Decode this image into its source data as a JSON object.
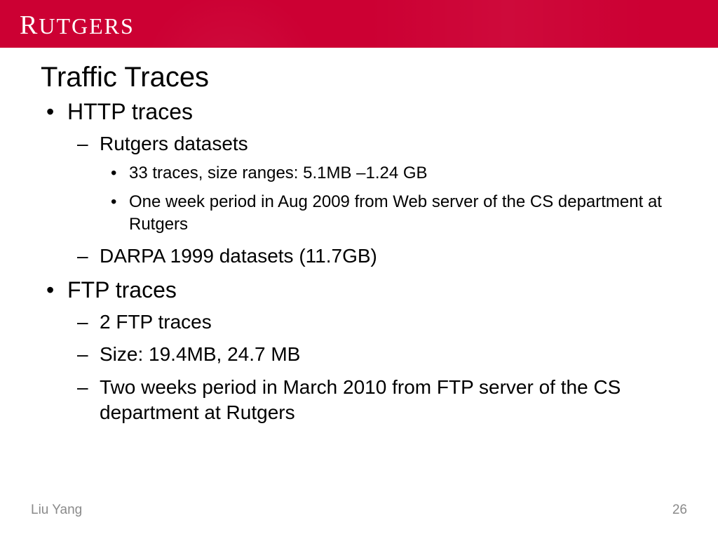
{
  "header": {
    "logo_text": "RUTGERS",
    "bar_color": "#cc0033"
  },
  "slide": {
    "title": "Traffic Traces",
    "bullets": [
      {
        "text": "HTTP traces",
        "children": [
          {
            "text": "Rutgers datasets",
            "children": [
              {
                "text": "33 traces, size ranges: 5.1MB –1.24 GB"
              },
              {
                "text": "One week period in Aug 2009 from Web server of the CS department at Rutgers"
              }
            ]
          },
          {
            "text": "DARPA 1999 datasets (11.7GB)"
          }
        ]
      },
      {
        "text": "FTP traces",
        "children": [
          {
            "text": "2 FTP traces"
          },
          {
            "text": "Size: 19.4MB, 24.7 MB"
          },
          {
            "text": "Two weeks period in March 2010 from FTP server of the CS department at Rutgers"
          }
        ]
      }
    ]
  },
  "footer": {
    "author": "Liu Yang",
    "page_number": "26"
  },
  "styles": {
    "title_fontsize": 40,
    "level1_fontsize": 32,
    "level2_fontsize": 28,
    "level3_fontsize": 24,
    "footer_fontsize": 19,
    "footer_color": "#8a8a8a",
    "text_color": "#000000",
    "background_color": "#ffffff"
  }
}
